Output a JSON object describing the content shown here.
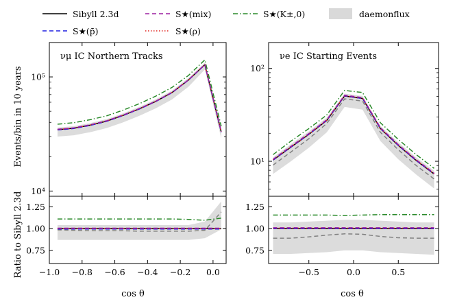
{
  "legend": [
    {
      "key": "sibyll",
      "label": "Sibyll 2.3d",
      "color": "#000000",
      "dash": "solid"
    },
    {
      "key": "pbar",
      "label": "S★(p̄)",
      "color": "#1f1fe0",
      "dash": "dashed"
    },
    {
      "key": "mix",
      "label": "S★(mix)",
      "color": "#9b1fa0",
      "dash": "dashed"
    },
    {
      "key": "rho",
      "label": "S★(ρ)",
      "color": "#e0231f",
      "dash": "dotted"
    },
    {
      "key": "kaon",
      "label": "S★(K±,0)",
      "color": "#2a8a2a",
      "dash": "dashdot"
    },
    {
      "key": "daemon",
      "label": "daemonflux",
      "color": "#d9d9d9",
      "dash": "band"
    }
  ],
  "y_axis_label_top": "Events/bin in 10 years",
  "y_axis_label_bottom": "Ratio to Sibyll 2.3d",
  "x_axis_label": "cos θ",
  "chart_data": [
    {
      "panel": "left-top",
      "type": "line",
      "title": "νμ IC Northern Tracks",
      "yscale": "log",
      "ylim": [
        9000,
        200000
      ],
      "xlim": [
        -1.0,
        0.08
      ],
      "yticks": [
        {
          "v": 10000,
          "label": "10⁴"
        },
        {
          "v": 100000,
          "label": "10⁵"
        }
      ],
      "x": [
        -0.95,
        -0.85,
        -0.75,
        -0.65,
        -0.55,
        -0.45,
        -0.35,
        -0.25,
        -0.15,
        -0.05,
        0.05
      ],
      "series": [
        {
          "key": "sibyll",
          "values": [
            34500,
            35500,
            37800,
            41000,
            46000,
            52500,
            61000,
            73000,
            94000,
            128000,
            33000
          ]
        },
        {
          "key": "pbar",
          "values": [
            34300,
            35300,
            37600,
            40800,
            45800,
            52300,
            60800,
            72800,
            93800,
            127500,
            32800
          ]
        },
        {
          "key": "mix",
          "values": [
            34800,
            35800,
            38100,
            41300,
            46300,
            52800,
            61300,
            73300,
            94300,
            128500,
            33200
          ]
        },
        {
          "key": "rho",
          "values": [
            34600,
            35600,
            37900,
            41100,
            46100,
            52600,
            61100,
            73100,
            94100,
            128200,
            33100
          ]
        },
        {
          "key": "kaon",
          "values": [
            38500,
            39700,
            42200,
            45600,
            51100,
            58300,
            67800,
            81000,
            103000,
            141000,
            37000
          ]
        }
      ],
      "band": {
        "key": "daemon",
        "lower": [
          30000,
          30800,
          32800,
          35600,
          39900,
          45600,
          53000,
          63500,
          82000,
          116000,
          29000
        ],
        "upper": [
          36000,
          37000,
          39400,
          42700,
          47900,
          54700,
          63600,
          76000,
          98000,
          133000,
          37000
        ]
      }
    },
    {
      "panel": "left-bottom",
      "type": "line",
      "ylim": [
        0.6,
        1.37
      ],
      "xlim": [
        -1.0,
        0.08
      ],
      "yticks": [
        {
          "v": 0.75,
          "label": "0.75"
        },
        {
          "v": 1.0,
          "label": "1.00"
        },
        {
          "v": 1.25,
          "label": "1.25"
        }
      ],
      "xticks": [
        {
          "v": -1.0,
          "label": "−1.0"
        },
        {
          "v": -0.8,
          "label": "−0.8"
        },
        {
          "v": -0.6,
          "label": "−0.6"
        },
        {
          "v": -0.4,
          "label": "−0.4"
        },
        {
          "v": -0.2,
          "label": "−0.2"
        },
        {
          "v": 0.0,
          "label": "0.0"
        }
      ],
      "x": [
        -0.95,
        -0.85,
        -0.75,
        -0.65,
        -0.55,
        -0.45,
        -0.35,
        -0.25,
        -0.15,
        -0.05,
        0.05
      ],
      "series": [
        {
          "key": "sibyll",
          "values": [
            1.0,
            1.0,
            1.0,
            1.0,
            1.0,
            1.0,
            1.0,
            1.0,
            1.0,
            1.0,
            1.0
          ]
        },
        {
          "key": "pbar",
          "values": [
            0.995,
            0.995,
            0.995,
            0.995,
            0.995,
            0.995,
            0.995,
            0.995,
            0.995,
            0.995,
            0.995
          ]
        },
        {
          "key": "mix",
          "values": [
            1.005,
            1.005,
            1.005,
            1.005,
            1.005,
            1.005,
            1.005,
            1.005,
            1.005,
            1.005,
            1.005
          ]
        },
        {
          "key": "rho",
          "values": [
            1.0,
            1.0,
            1.0,
            1.0,
            1.0,
            1.0,
            1.0,
            1.0,
            1.0,
            1.0,
            1.0
          ]
        },
        {
          "key": "kaon",
          "values": [
            1.11,
            1.11,
            1.11,
            1.11,
            1.11,
            1.11,
            1.11,
            1.11,
            1.105,
            1.095,
            1.12
          ]
        },
        {
          "key": "daemon_central",
          "values": [
            0.985,
            0.98,
            0.975,
            0.975,
            0.975,
            0.97,
            0.97,
            0.97,
            0.97,
            0.98,
            1.19
          ]
        }
      ],
      "band": {
        "key": "daemon",
        "lower": [
          0.87,
          0.87,
          0.87,
          0.87,
          0.87,
          0.87,
          0.87,
          0.87,
          0.87,
          0.89,
          0.99
        ],
        "upper": [
          1.04,
          1.04,
          1.04,
          1.04,
          1.04,
          1.04,
          1.04,
          1.04,
          1.04,
          1.08,
          1.31
        ]
      }
    },
    {
      "panel": "right-top",
      "type": "line",
      "title": "νe IC Starting Events",
      "yscale": "log",
      "ylim": [
        4.2,
        190
      ],
      "xlim": [
        -0.95,
        0.95
      ],
      "yticks": [
        {
          "v": 10,
          "label": "10¹"
        },
        {
          "v": 100,
          "label": "10²"
        }
      ],
      "x": [
        -0.9,
        -0.7,
        -0.5,
        -0.3,
        -0.1,
        0.1,
        0.3,
        0.5,
        0.7,
        0.9
      ],
      "series": [
        {
          "key": "sibyll",
          "values": [
            10.3,
            14.2,
            19.5,
            27.5,
            50.5,
            47.5,
            22.5,
            14.8,
            10.2,
            7.3
          ]
        },
        {
          "key": "pbar",
          "values": [
            10.3,
            14.2,
            19.5,
            27.5,
            50.5,
            47.5,
            22.5,
            14.8,
            10.2,
            7.3
          ]
        },
        {
          "key": "mix",
          "values": [
            10.5,
            14.5,
            19.9,
            28.0,
            51.5,
            48.5,
            23.0,
            15.1,
            10.4,
            7.45
          ]
        },
        {
          "key": "rho",
          "values": [
            10.4,
            14.3,
            19.6,
            27.7,
            50.8,
            47.8,
            22.6,
            14.9,
            10.3,
            7.35
          ]
        },
        {
          "key": "kaon",
          "values": [
            11.8,
            16.5,
            22.5,
            31.5,
            58.0,
            55.0,
            26.0,
            17.2,
            11.8,
            8.4
          ]
        },
        {
          "key": "daemon_central",
          "values": [
            9.1,
            12.6,
            17.5,
            25.5,
            47.0,
            44.5,
            20.5,
            13.3,
            9.0,
            6.45
          ]
        }
      ],
      "band": {
        "key": "daemon",
        "lower": [
          7.3,
          10.0,
          14.0,
          20.5,
          38.5,
          36.0,
          16.5,
          10.5,
          7.2,
          5.1
        ],
        "upper": [
          11.0,
          15.3,
          21.0,
          29.5,
          53.5,
          50.5,
          24.0,
          16.0,
          11.0,
          7.9
        ]
      }
    },
    {
      "panel": "right-bottom",
      "type": "line",
      "ylim": [
        0.6,
        1.37
      ],
      "xlim": [
        -0.95,
        0.95
      ],
      "yticks": [
        {
          "v": 0.75,
          "label": "0.75"
        },
        {
          "v": 1.0,
          "label": "1.00"
        },
        {
          "v": 1.25,
          "label": "1.25"
        }
      ],
      "xticks": [
        {
          "v": -0.5,
          "label": "−0.5"
        },
        {
          "v": 0.0,
          "label": "0.0"
        },
        {
          "v": 0.5,
          "label": "0.5"
        }
      ],
      "x": [
        -0.9,
        -0.7,
        -0.5,
        -0.3,
        -0.1,
        0.1,
        0.3,
        0.5,
        0.7,
        0.9
      ],
      "series": [
        {
          "key": "sibyll",
          "values": [
            1.0,
            1.0,
            1.0,
            1.0,
            1.0,
            1.0,
            1.0,
            1.0,
            1.0,
            1.0
          ]
        },
        {
          "key": "pbar",
          "values": [
            1.0,
            1.0,
            1.0,
            1.0,
            1.0,
            1.0,
            1.0,
            1.0,
            1.0,
            1.0
          ]
        },
        {
          "key": "mix",
          "values": [
            1.01,
            1.01,
            1.01,
            1.01,
            1.01,
            1.01,
            1.01,
            1.01,
            1.01,
            1.01
          ]
        },
        {
          "key": "rho",
          "values": [
            1.005,
            1.005,
            1.005,
            1.005,
            1.005,
            1.005,
            1.005,
            1.005,
            1.005,
            1.005
          ]
        },
        {
          "key": "kaon",
          "values": [
            1.155,
            1.155,
            1.155,
            1.155,
            1.15,
            1.155,
            1.16,
            1.16,
            1.16,
            1.16
          ]
        },
        {
          "key": "daemon_central",
          "values": [
            0.89,
            0.89,
            0.905,
            0.925,
            0.94,
            0.935,
            0.91,
            0.895,
            0.89,
            0.89
          ]
        }
      ],
      "band": {
        "key": "daemon",
        "lower": [
          0.71,
          0.71,
          0.72,
          0.73,
          0.75,
          0.75,
          0.73,
          0.72,
          0.71,
          0.7
        ],
        "upper": [
          1.07,
          1.07,
          1.08,
          1.09,
          1.1,
          1.1,
          1.09,
          1.08,
          1.07,
          1.07
        ]
      }
    }
  ]
}
